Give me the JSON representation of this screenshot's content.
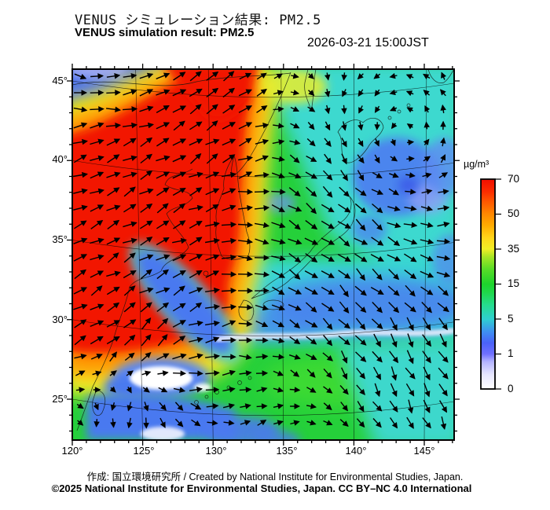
{
  "header": {
    "title_ja": "VENUS シミュレーション結果: PM2.5",
    "title_en": "VENUS simulation result: PM2.5",
    "datetime": "2026-03-21 15:00JST"
  },
  "axes": {
    "lat_labels": [
      "45°",
      "40°",
      "35°",
      "30°",
      "25°"
    ],
    "lon_labels": [
      "120°",
      "125°",
      "130°",
      "135°",
      "140°",
      "145°"
    ]
  },
  "colorbar": {
    "unit": "µg/m³",
    "labels": [
      "70",
      "50",
      "35",
      "15",
      "5",
      "1",
      "0"
    ],
    "level_colors": {
      "0": "#ffffff",
      "1": "#5a5aff",
      "5": "#2fd0cf",
      "15": "#1fd42c",
      "35": "#f1ee26",
      "50": "#ff8800",
      "70": "#ef0e00"
    }
  },
  "footer": {
    "credit": "作成:  国立環境研究所 / Created by National Institute for Environmental Studies, Japan.",
    "copyright": "©2025 National Institute for Environmental Studies, Japan. CC BY–NC 4.0 International"
  },
  "chart_data": {
    "type": "heatmap",
    "title": "VENUS simulation result: PM2.5",
    "datetime": "2026-03-21 15:00JST",
    "unit": "µg/m³",
    "colorbar_levels": [
      0,
      1,
      5,
      15,
      35,
      50,
      70
    ],
    "lon_range": [
      120,
      147
    ],
    "lat_range": [
      22.5,
      45.7
    ],
    "grid_interval_deg": 5,
    "overlays": [
      "coastlines",
      "graticule",
      "wind vector arrows"
    ],
    "features": [
      {
        "region": "Eastern China / Yellow Sea plume",
        "pm25": "> 70 (red), fringed by orange 50 and yellow 35"
      },
      {
        "region": "Plume tail extending northeast to top edge near 128–133E",
        "pm25": "50–70"
      },
      {
        "region": "Korean peninsula and Sea of Japan",
        "pm25": "15–35 (green)"
      },
      {
        "region": "Hokkaido / northeast Japan",
        "pm25": "1–5 (cyan-blue) with cyclonic wind circulation"
      },
      {
        "region": "Northeast China top-left corner",
        "pm25": "1–5 (blue)"
      },
      {
        "region": "East China Sea clean pocket near 124E 26N",
        "pm25": "0–1 (white)"
      },
      {
        "region": "Pacific south of Honshu above frontal band",
        "pm25": "1–5 (blue) with white front line near 31N"
      },
      {
        "region": "Subtropical Pacific south of front",
        "pm25": "15–35 (green)"
      }
    ],
    "wind_note": "Black arrows show near-surface wind; strong northeastward flow over the China plume, counterclockwise vortex east of Hokkaido, southward flow over the western Pacific."
  }
}
